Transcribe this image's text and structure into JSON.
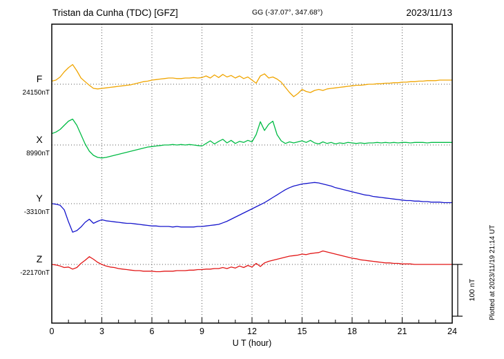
{
  "header": {
    "title": "Tristan da Cunha (TDC)  [GFZ]",
    "coords": "GG (-37.07°, 347.68°)",
    "date": "2023/11/13"
  },
  "side": {
    "plotted": "Plotted at 2023/11/19 21:14 UT",
    "scale_label": "100 nT"
  },
  "chart_data": {
    "type": "line",
    "title": "Tristan da Cunha (TDC) [GFZ] magnetogram",
    "subtitle": "GG (-37.07°, 347.68°)",
    "date": "2023/11/13",
    "xlabel": "U T (hour)",
    "x_range": [
      0,
      24
    ],
    "x_ticks": [
      0,
      3,
      6,
      9,
      12,
      15,
      18,
      21,
      24
    ],
    "x_minor_tick_step": 1,
    "x_step": 0.25,
    "grid": "dotted vertical at ticks, dotted horizontal at each series baseline",
    "scale_bar": {
      "label": "100 nT",
      "nT": 100
    },
    "series": [
      {
        "name": "F",
        "color": "#f0a500",
        "baseline_label": "24150nT",
        "baseline_nT": 24150,
        "offsets_nT": [
          6,
          8,
          14,
          24,
          32,
          38,
          26,
          12,
          5,
          -2,
          -8,
          -9,
          -8,
          -7,
          -6,
          -5,
          -4,
          -3,
          -2,
          -1,
          1,
          3,
          5,
          6,
          8,
          9,
          10,
          11,
          12,
          12,
          11,
          11,
          12,
          12,
          13,
          12,
          13,
          16,
          12,
          18,
          13,
          19,
          14,
          17,
          12,
          16,
          11,
          14,
          8,
          2,
          16,
          20,
          12,
          14,
          10,
          4,
          -6,
          -16,
          -24,
          -18,
          -10,
          -14,
          -16,
          -12,
          -10,
          -12,
          -9,
          -8,
          -7,
          -6,
          -5,
          -4,
          -3,
          -2,
          -2,
          -1,
          0,
          0,
          1,
          1,
          2,
          2,
          3,
          3,
          4,
          4,
          5,
          5,
          6,
          6,
          7,
          7,
          7,
          8,
          8,
          8,
          8
        ]
      },
      {
        "name": "X",
        "color": "#00bb44",
        "baseline_label": "8990nT",
        "baseline_nT": 8990,
        "offsets_nT": [
          22,
          25,
          30,
          38,
          46,
          50,
          38,
          20,
          2,
          -12,
          -20,
          -24,
          -25,
          -24,
          -22,
          -20,
          -18,
          -16,
          -14,
          -12,
          -10,
          -8,
          -6,
          -4,
          -3,
          -2,
          -1,
          0,
          0,
          1,
          0,
          1,
          0,
          1,
          0,
          -1,
          -2,
          3,
          8,
          2,
          7,
          11,
          4,
          9,
          3,
          7,
          5,
          9,
          6,
          20,
          45,
          28,
          40,
          46,
          20,
          8,
          3,
          6,
          4,
          6,
          8,
          5,
          9,
          4,
          2,
          6,
          3,
          5,
          2,
          4,
          3,
          5,
          4,
          3,
          4,
          3,
          4,
          4,
          5,
          4,
          5,
          4,
          5,
          4,
          5,
          5,
          4,
          5,
          5,
          5,
          4,
          5,
          5,
          5,
          5,
          5,
          5
        ]
      },
      {
        "name": "Y",
        "color": "#1414cc",
        "baseline_label": "-3310nT",
        "baseline_nT": -3310,
        "offsets_nT": [
          0,
          -1,
          -3,
          -12,
          -35,
          -55,
          -52,
          -45,
          -36,
          -30,
          -38,
          -34,
          -31,
          -33,
          -34,
          -35,
          -36,
          -37,
          -38,
          -38,
          -39,
          -40,
          -41,
          -42,
          -43,
          -43,
          -44,
          -44,
          -44,
          -45,
          -44,
          -45,
          -45,
          -45,
          -45,
          -44,
          -44,
          -43,
          -42,
          -41,
          -40,
          -37,
          -34,
          -30,
          -26,
          -22,
          -18,
          -14,
          -10,
          -6,
          -2,
          2,
          7,
          12,
          17,
          22,
          27,
          31,
          34,
          36,
          38,
          39,
          40,
          41,
          40,
          38,
          36,
          34,
          31,
          29,
          27,
          25,
          23,
          21,
          19,
          17,
          16,
          14,
          13,
          12,
          11,
          10,
          9,
          8,
          7,
          6,
          6,
          5,
          5,
          4,
          4,
          3,
          3,
          3,
          2,
          2,
          2
        ]
      },
      {
        "name": "Z",
        "color": "#e21414",
        "baseline_label": "-22170nT",
        "baseline_nT": -22170,
        "offsets_nT": [
          0,
          -1,
          -3,
          -6,
          -5,
          -9,
          -6,
          2,
          8,
          15,
          10,
          4,
          0,
          -3,
          -5,
          -6,
          -8,
          -9,
          -10,
          -11,
          -12,
          -12,
          -13,
          -13,
          -13,
          -14,
          -14,
          -13,
          -13,
          -13,
          -12,
          -12,
          -12,
          -11,
          -11,
          -10,
          -10,
          -9,
          -9,
          -8,
          -8,
          -6,
          -8,
          -5,
          -7,
          -3,
          -6,
          -2,
          -5,
          2,
          -4,
          3,
          6,
          8,
          10,
          12,
          14,
          16,
          17,
          18,
          20,
          19,
          21,
          22,
          23,
          26,
          24,
          22,
          20,
          18,
          16,
          14,
          12,
          11,
          9,
          8,
          7,
          6,
          5,
          4,
          3,
          3,
          2,
          2,
          1,
          1,
          1,
          0,
          0,
          0,
          0,
          0,
          0,
          0,
          0,
          0,
          0
        ]
      }
    ]
  }
}
